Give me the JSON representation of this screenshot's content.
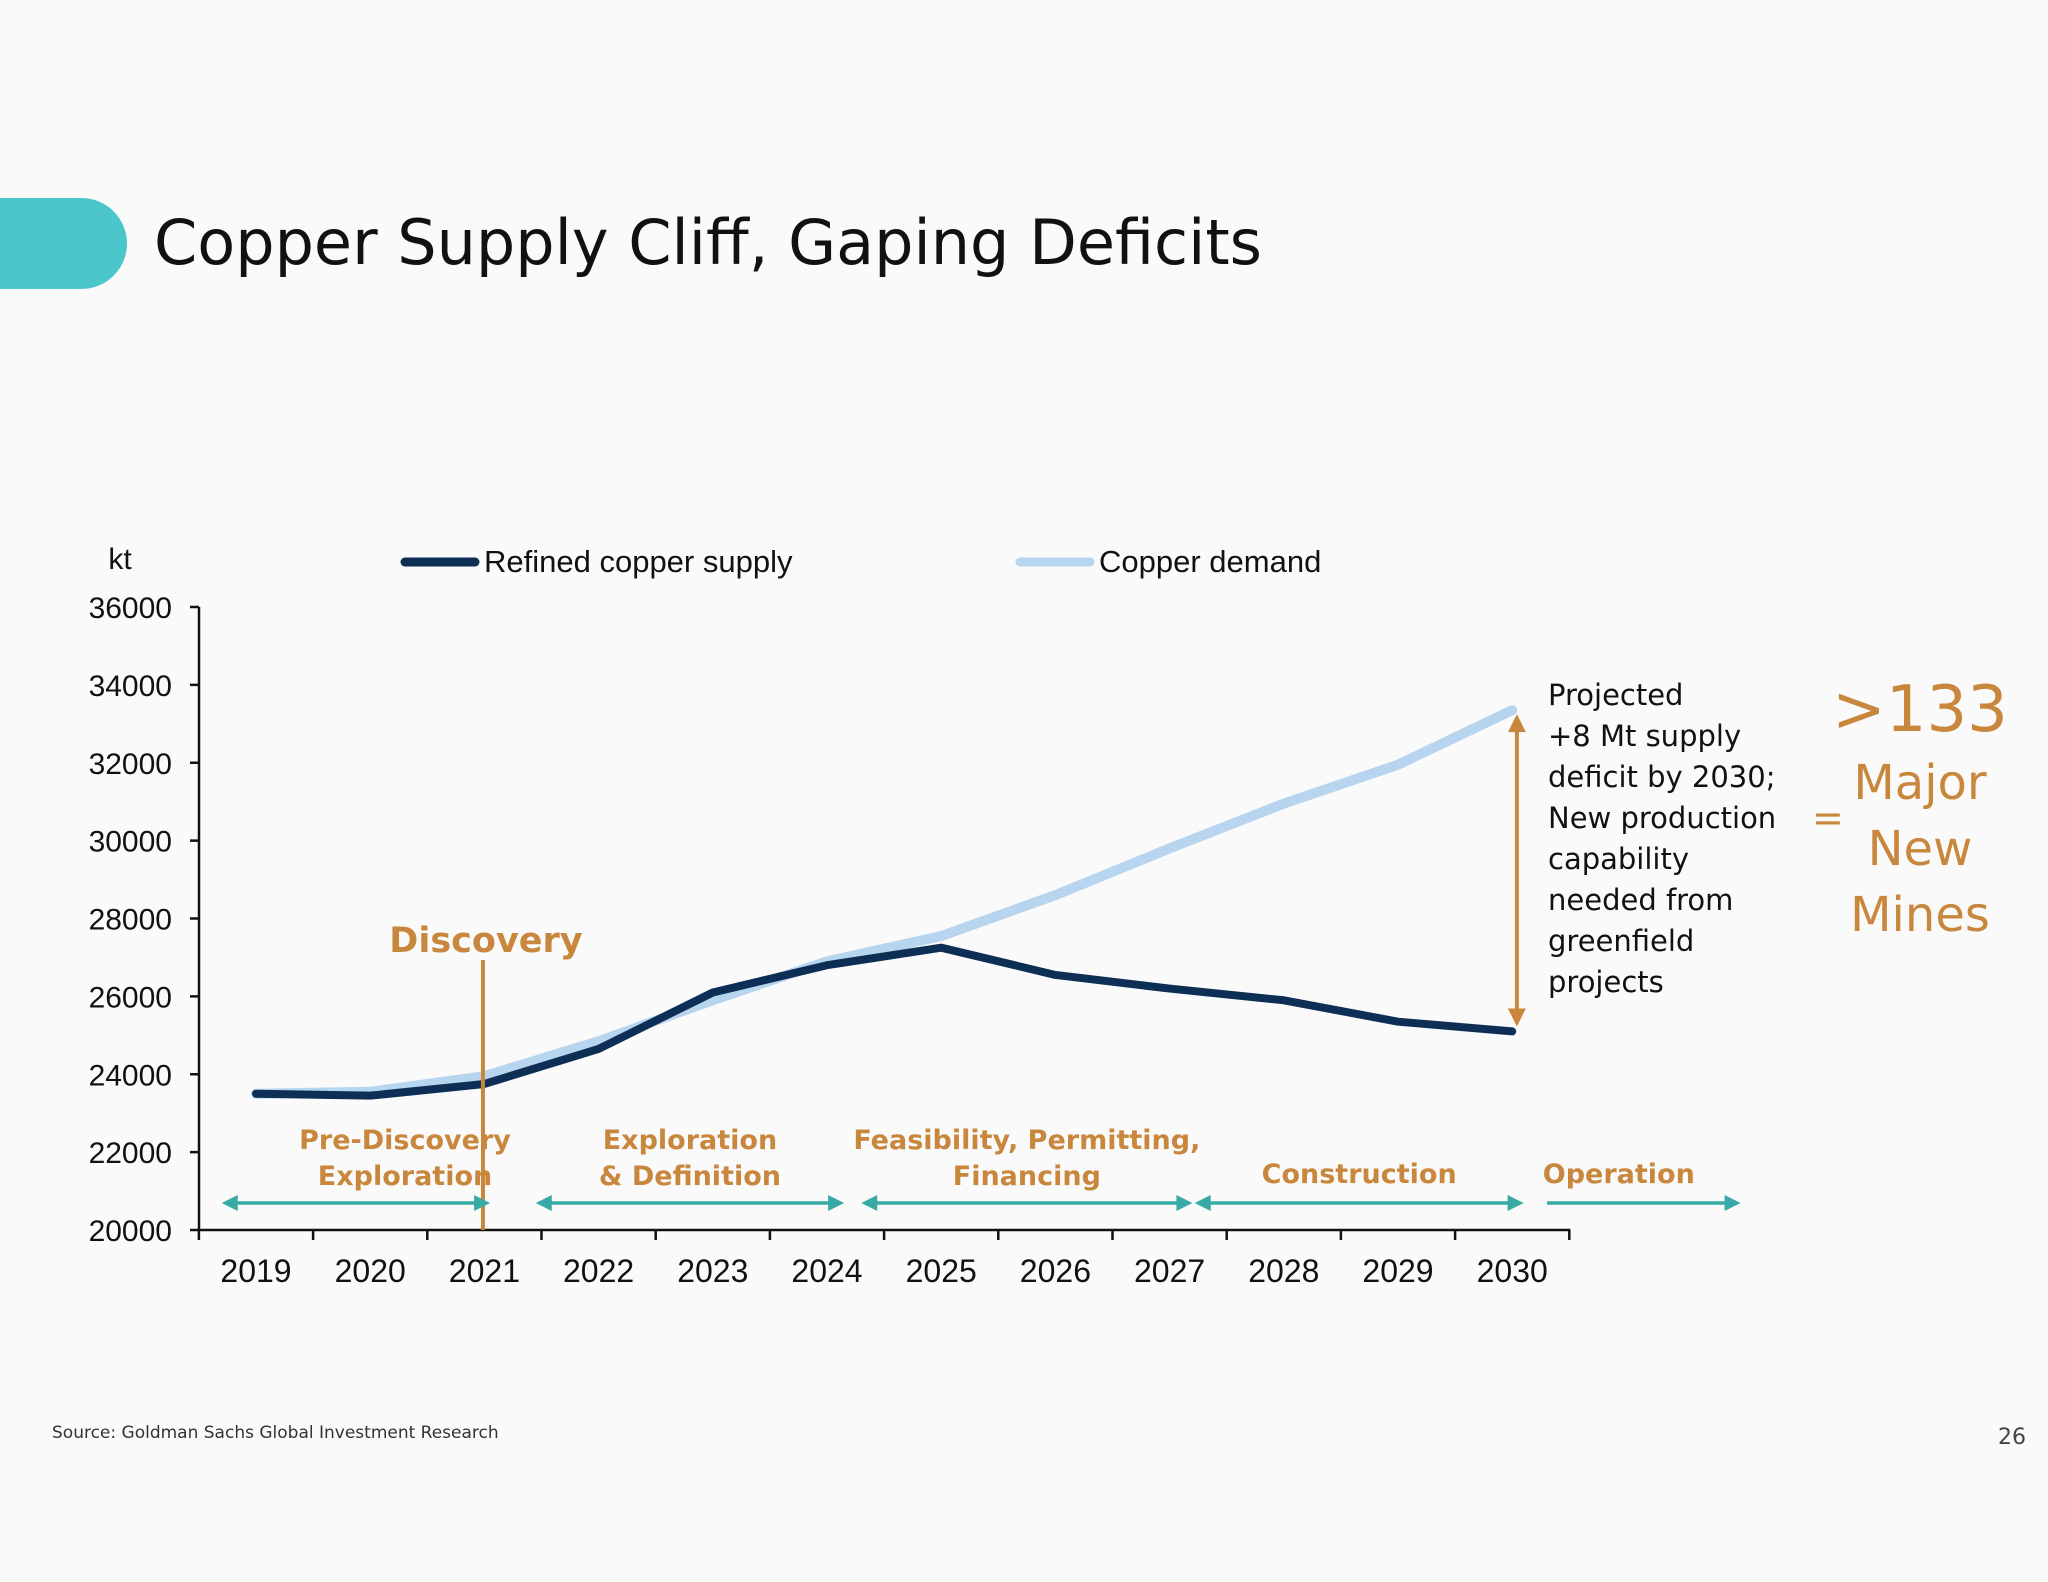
{
  "slide": {
    "title": "Copper Supply Cliff, Gaping Deficits",
    "accent_color": "#4bc7cc",
    "source": "Source: Goldman Sachs Global Investment Research",
    "page_number": "26"
  },
  "chart_data": {
    "type": "line",
    "title": "",
    "ylabel": "kt",
    "xlabel": "",
    "x": [
      "2019",
      "2020",
      "2021",
      "2022",
      "2023",
      "2024",
      "2025",
      "2026",
      "2027",
      "2028",
      "2029",
      "2030"
    ],
    "ylim": [
      20000,
      36000
    ],
    "yticks": [
      20000,
      22000,
      24000,
      26000,
      28000,
      30000,
      32000,
      34000,
      36000
    ],
    "ytick_labels": [
      "20000",
      "22000",
      "24000",
      "26000",
      "28000",
      "30000",
      "32000",
      "34000",
      "36000"
    ],
    "grid": false,
    "legend_position": "top",
    "series": [
      {
        "name": "Refined copper supply",
        "color": "#0d2f55",
        "values": [
          23500,
          23450,
          23750,
          24650,
          26100,
          26800,
          27250,
          26550,
          26200,
          25900,
          25350,
          25100
        ]
      },
      {
        "name": "Copper demand",
        "color": "#b7d5ef",
        "values": [
          23500,
          23550,
          23950,
          24850,
          25900,
          26900,
          27550,
          28600,
          29800,
          30950,
          31950,
          33350
        ]
      }
    ],
    "discovery_marker": {
      "label": "Discovery",
      "x": 2021.25,
      "color": "#c8873c"
    },
    "phases": [
      {
        "label_lines": [
          "Pre-Discovery",
          "Exploration"
        ],
        "from": 2018.7,
        "to": 2021.05
      },
      {
        "label_lines": [
          "Exploration",
          "& Definition"
        ],
        "from": 2021.45,
        "to": 2024.15
      },
      {
        "label_lines": [
          "Feasibility, Permitting,",
          "Financing"
        ],
        "from": 2024.3,
        "to": 2027.2
      },
      {
        "label_lines": [
          "Construction"
        ],
        "from": 2027.22,
        "to": 2030.1
      },
      {
        "label_lines": [
          "Operation"
        ],
        "from": 2030.2,
        "to": 2032.0
      }
    ],
    "phase_arrow_color": "#37aaa6",
    "phase_label_color": "#c8873c",
    "deficit_arrow": {
      "x": 2030.05,
      "from": 25150,
      "to": 33350,
      "color": "#c8873c"
    }
  },
  "annotation": {
    "lines": [
      "Projected",
      "+8 Mt supply",
      "deficit by 2030;",
      "New production",
      "capability",
      "needed from",
      "greenfield",
      "projects"
    ],
    "equals": "=",
    "mines_count": ">133",
    "mines_label_lines": [
      "Major",
      "New",
      "Mines"
    ]
  }
}
